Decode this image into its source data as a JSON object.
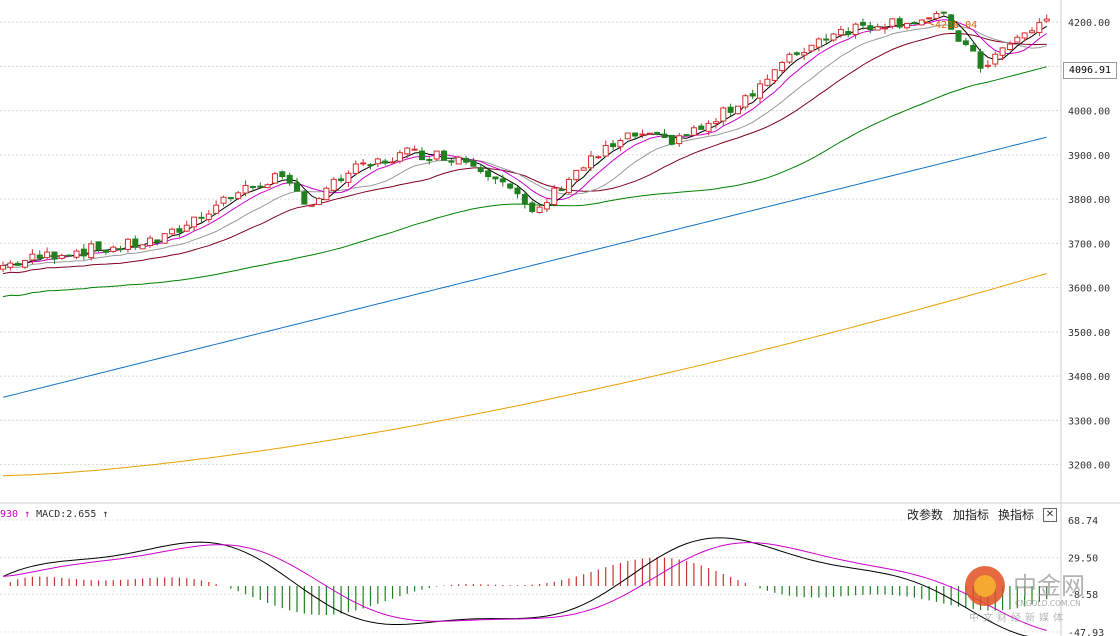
{
  "chart_data": [
    {
      "type": "candlestick",
      "name": "price",
      "ylim": [
        3120,
        4250
      ],
      "y_ticks": [
        "4200.00",
        "4100.00",
        "4000.00",
        "3900.00",
        "3800.00",
        "3700.00",
        "3600.00",
        "3500.00",
        "3400.00",
        "3300.00",
        "3200.00"
      ],
      "current_price": "4096.91",
      "high_annotation": "4238.04",
      "ma_colors": {
        "ma5": "#000000",
        "ma10": "#cc00cc",
        "ma20": "#999999",
        "ma30": "#800020",
        "ma60": "#008000",
        "ma120": "#1070c0",
        "ma250": "#e8a000"
      },
      "up_color": "#d03030",
      "down_color": "#208020"
    },
    {
      "type": "macd",
      "label": "MACD:2.655",
      "label_prefix": "930",
      "y_ticks": [
        "68.74",
        "29.50",
        "-8.58",
        "-47.93"
      ]
    }
  ],
  "toolbar": {
    "modify_params": "改参数",
    "add_indicator": "加指标",
    "switch_indicator": "换指标",
    "close": "✕"
  },
  "logo": {
    "cn": "中金网",
    "url": "CNGOLD.COM.CN",
    "sub": "中文财经新媒体"
  }
}
